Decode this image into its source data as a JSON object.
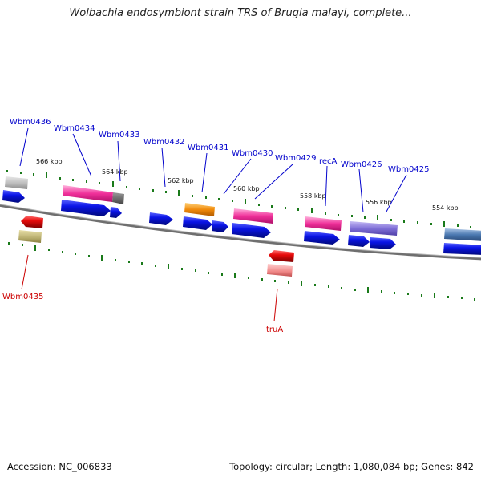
{
  "title": "Wolbachia endosymbiont strain TRS of Brugia malayi, complete...",
  "accession": "Accession: NC_006833",
  "summary": "Topology: circular; Length: 1,080,084 bp; Genes: 842",
  "colors": {
    "backbone": "#777777",
    "cds_forward": "#0a14e6",
    "cds_reverse": "#e60a0a",
    "tick": "#1a7a1a",
    "label_forward": "#0000cc",
    "label_reverse": "#cc0000"
  },
  "tick_labels": [
    "566 kbp",
    "564 kbp",
    "562 kbp",
    "560 kbp",
    "558 kbp",
    "556 kbp",
    "554 kbp"
  ],
  "gene_labels_forward": [
    "Wbm0436",
    "Wbm0434",
    "Wbm0433",
    "Wbm0432",
    "Wbm0431",
    "Wbm0430",
    "Wbm0429",
    "recA",
    "Wbm0426",
    "Wbm0425"
  ],
  "gene_labels_reverse": [
    "Wbm0435",
    "truA"
  ]
}
